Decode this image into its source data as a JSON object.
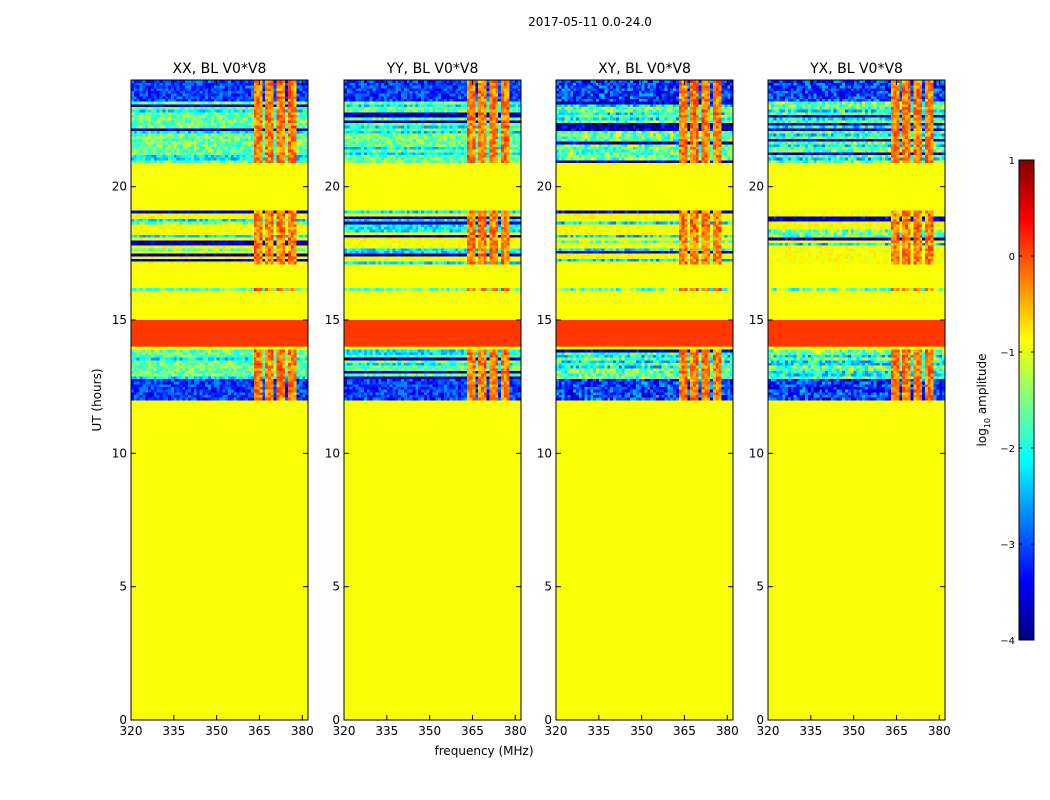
{
  "chart_data": {
    "type": "heatmap",
    "suptitle": "2017-05-11 0.0-24.0",
    "xlabel": "frequency (MHz)",
    "ylabel": "UT (hours)",
    "xlim": [
      320,
      382
    ],
    "ylim": [
      0,
      24
    ],
    "xticks": [
      "320",
      "335",
      "350",
      "365",
      "380"
    ],
    "xtick_values": [
      320,
      335,
      350,
      365,
      380
    ],
    "yticks": [
      "0",
      "5",
      "10",
      "15",
      "20"
    ],
    "ytick_values": [
      0,
      5,
      10,
      15,
      20
    ],
    "colorbar": {
      "label": "log10 amplitude",
      "label_base": "log",
      "label_sub": "10",
      "label_rest": " amplitude",
      "range": [
        -4,
        1
      ],
      "ticks": [
        "1",
        "0",
        "−1",
        "−2",
        "−3",
        "−4"
      ],
      "tick_values": [
        1,
        0,
        -1,
        -2,
        -3,
        -4
      ],
      "colors": [
        "#00007f",
        "#0000ff",
        "#0080ff",
        "#00ffff",
        "#80ff80",
        "#ffff00",
        "#ff8000",
        "#ff0000",
        "#7f0000"
      ]
    },
    "panels": [
      {
        "title": "XX, BL V0*V8",
        "key": "XX"
      },
      {
        "title": "YY, BL V0*V8",
        "key": "YY"
      },
      {
        "title": "XY, BL V0*V8",
        "key": "XY"
      },
      {
        "title": "YX, BL V0*V8",
        "key": "YX"
      }
    ],
    "background_level": -0.9,
    "flagged_band": {
      "ut": [
        14.0,
        15.0
      ],
      "level": 0.1
    },
    "rfi_freq_columns": [
      [
        363,
        366
      ],
      [
        367,
        369.5
      ],
      [
        371,
        374
      ],
      [
        375.5,
        377.5
      ]
    ],
    "active_ut_ranges": [
      [
        12.0,
        13.9
      ],
      [
        16.1,
        16.2
      ],
      [
        17.1,
        19.1
      ],
      [
        20.9,
        24.0
      ]
    ]
  }
}
